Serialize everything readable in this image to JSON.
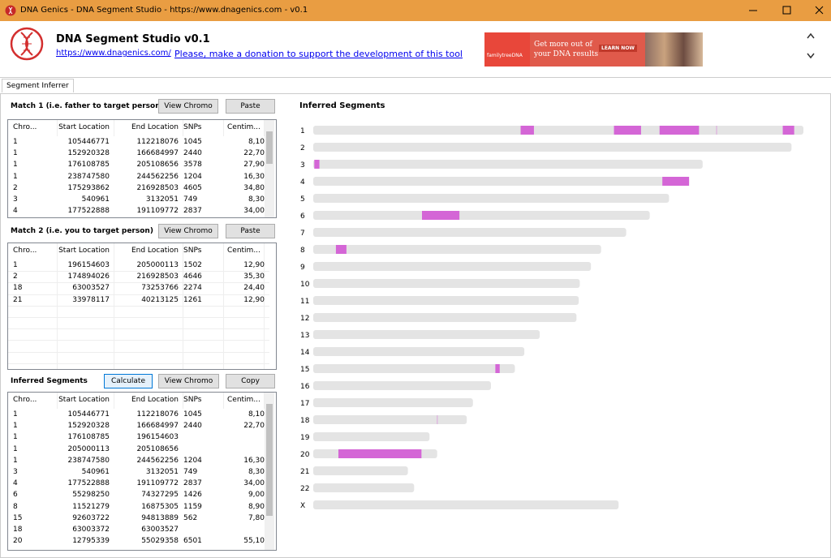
{
  "window": {
    "title": "DNA Genics - DNA Segment Studio - https://www.dnagenics.com - v0.1"
  },
  "header": {
    "app_title": "DNA Segment Studio v0.1",
    "website_link": "https://www.dnagenics.com/",
    "donation_link": "Please, make a donation to support the development of this tool",
    "ad": {
      "brand": "familytreeDNA",
      "headline": [
        "Get more out of",
        "your DNA results"
      ],
      "button": "LEARN NOW"
    }
  },
  "tabs": [
    "Segment Inferrer"
  ],
  "match1": {
    "label": "Match 1 (i.e. father to target person)",
    "buttons": [
      "View Chromo",
      "Paste"
    ],
    "columns": [
      "Chro...",
      "Start Location",
      "End Location",
      "SNPs",
      "Centim..."
    ],
    "rows": [
      [
        "1",
        105446771,
        112218076,
        1045,
        "8,10"
      ],
      [
        "1",
        152920328,
        166684997,
        2440,
        "22,70"
      ],
      [
        "1",
        176108785,
        205108656,
        3578,
        "27,90"
      ],
      [
        "1",
        238747580,
        244562256,
        1204,
        "16,30"
      ],
      [
        "2",
        175293862,
        216928503,
        4605,
        "34,80"
      ],
      [
        "3",
        540961,
        3132051,
        749,
        "8,30"
      ],
      [
        "4",
        177522888,
        191109772,
        2837,
        "34,00"
      ]
    ]
  },
  "match2": {
    "label": "Match 2 (i.e. you to target person)",
    "buttons": [
      "View Chromo",
      "Paste"
    ],
    "columns": [
      "Chro...",
      "Start Location",
      "End Location",
      "SNPs",
      "Centim..."
    ],
    "rows": [
      [
        "1",
        196154603,
        205000113,
        1502,
        "12,90"
      ],
      [
        "2",
        174894026,
        216928503,
        4646,
        "35,30"
      ],
      [
        "18",
        63003527,
        73253766,
        2274,
        "24,40"
      ],
      [
        "21",
        33978117,
        40213125,
        1261,
        "12,90"
      ]
    ]
  },
  "inferred": {
    "label": "Inferred Segments",
    "buttons": [
      "Calculate",
      "View Chromo",
      "Copy"
    ],
    "columns": [
      "Chro...",
      "Start Location",
      "End Location",
      "SNPs",
      "Centim..."
    ],
    "rows": [
      [
        "1",
        105446771,
        112218076,
        1045,
        "8,10"
      ],
      [
        "1",
        152920328,
        166684997,
        2440,
        "22,70"
      ],
      [
        "1",
        176108785,
        196154603,
        null,
        null
      ],
      [
        "1",
        205000113,
        205108656,
        null,
        null
      ],
      [
        "1",
        238747580,
        244562256,
        1204,
        "16,30"
      ],
      [
        "3",
        540961,
        3132051,
        749,
        "8,30"
      ],
      [
        "4",
        177522888,
        191109772,
        2837,
        "34,00"
      ],
      [
        "6",
        55298250,
        74327295,
        1426,
        "9,00"
      ],
      [
        "8",
        11521279,
        16875305,
        1159,
        "8,90"
      ],
      [
        "15",
        92603722,
        94813889,
        562,
        "7,80"
      ],
      [
        "18",
        63003372,
        63003527,
        null,
        null
      ],
      [
        "20",
        12795339,
        55029358,
        6501,
        "55,10"
      ]
    ]
  },
  "chromosome_map": {
    "title": "Inferred Segments",
    "chromosomes": [
      {
        "label": "1",
        "length": 249250621
      },
      {
        "label": "2",
        "length": 243199373
      },
      {
        "label": "3",
        "length": 198022430
      },
      {
        "label": "4",
        "length": 191154276
      },
      {
        "label": "5",
        "length": 180915260
      },
      {
        "label": "6",
        "length": 171115067
      },
      {
        "label": "7",
        "length": 159138663
      },
      {
        "label": "8",
        "length": 146364022
      },
      {
        "label": "9",
        "length": 141213431
      },
      {
        "label": "10",
        "length": 135534747
      },
      {
        "label": "11",
        "length": 135006516
      },
      {
        "label": "12",
        "length": 133851895
      },
      {
        "label": "13",
        "length": 115169878
      },
      {
        "label": "14",
        "length": 107349540
      },
      {
        "label": "15",
        "length": 102531392
      },
      {
        "label": "16",
        "length": 90354753
      },
      {
        "label": "17",
        "length": 81195210
      },
      {
        "label": "18",
        "length": 78077248
      },
      {
        "label": "19",
        "length": 59128983
      },
      {
        "label": "20",
        "length": 63025520
      },
      {
        "label": "21",
        "length": 48129895
      },
      {
        "label": "22",
        "length": 51304566
      },
      {
        "label": "X",
        "length": 155270560
      }
    ]
  }
}
